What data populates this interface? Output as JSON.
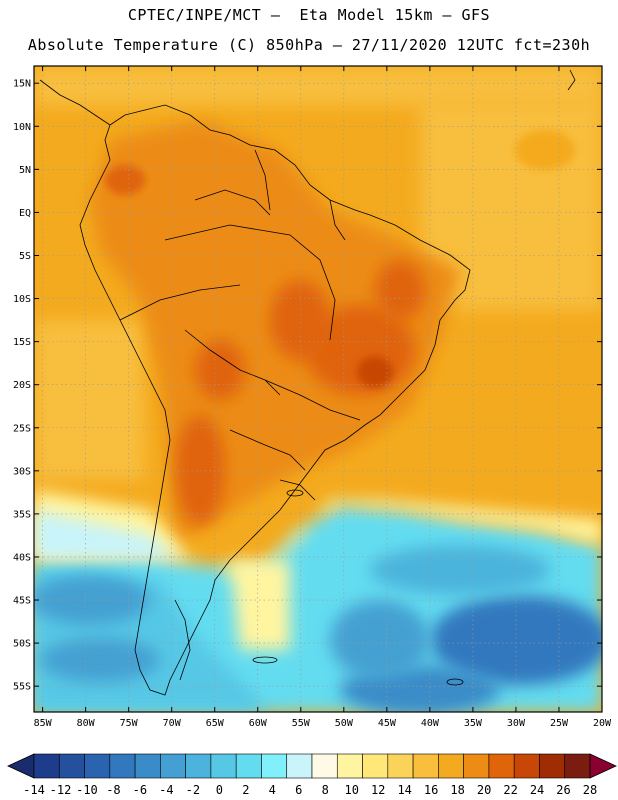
{
  "header": {
    "line1": "CPTEC/INPE/MCT –  Eta Model 15km – GFS",
    "line2": "Absolute Temperature (C) 850hPa – 27/11/2020 12UTC fct=230h"
  },
  "map": {
    "lon_range": [
      -86,
      -20
    ],
    "lat_range": [
      -58,
      17
    ],
    "lat_ticks": [
      "15N",
      "10N",
      "5N",
      "EQ",
      "5S",
      "10S",
      "15S",
      "20S",
      "25S",
      "30S",
      "35S",
      "40S",
      "45S",
      "50S",
      "55S"
    ],
    "lat_tick_values": [
      15,
      10,
      5,
      0,
      -5,
      -10,
      -15,
      -20,
      -25,
      -30,
      -35,
      -40,
      -45,
      -50,
      -55
    ],
    "lon_ticks": [
      "85W",
      "80W",
      "75W",
      "70W",
      "65W",
      "60W",
      "55W",
      "50W",
      "45W",
      "40W",
      "35W",
      "30W",
      "25W",
      "20W"
    ],
    "lon_tick_values": [
      -85,
      -80,
      -75,
      -70,
      -65,
      -60,
      -55,
      -50,
      -45,
      -40,
      -35,
      -30,
      -25,
      -20
    ],
    "grid": true
  },
  "colorbar": {
    "labels": [
      "-14",
      "-12",
      "-10",
      "-8",
      "-6",
      "-4",
      "-2",
      "0",
      "2",
      "4",
      "6",
      "8",
      "10",
      "12",
      "14",
      "16",
      "18",
      "20",
      "22",
      "24",
      "26",
      "28"
    ],
    "colors": [
      "#1e3c8c",
      "#24509e",
      "#2a64b0",
      "#3278be",
      "#3a8cc8",
      "#44a0d2",
      "#4cb4dc",
      "#56c8e6",
      "#64dcf0",
      "#82f0fa",
      "#c8f4fa",
      "#fffae6",
      "#fff5a0",
      "#ffe878",
      "#fcd35a",
      "#f8be3c",
      "#f4aa1e",
      "#ec8c14",
      "#e0640a",
      "#c84606",
      "#a02c04",
      "#7a1c10"
    ],
    "under_color": "#1a2c6c",
    "over_color": "#8a0030"
  }
}
